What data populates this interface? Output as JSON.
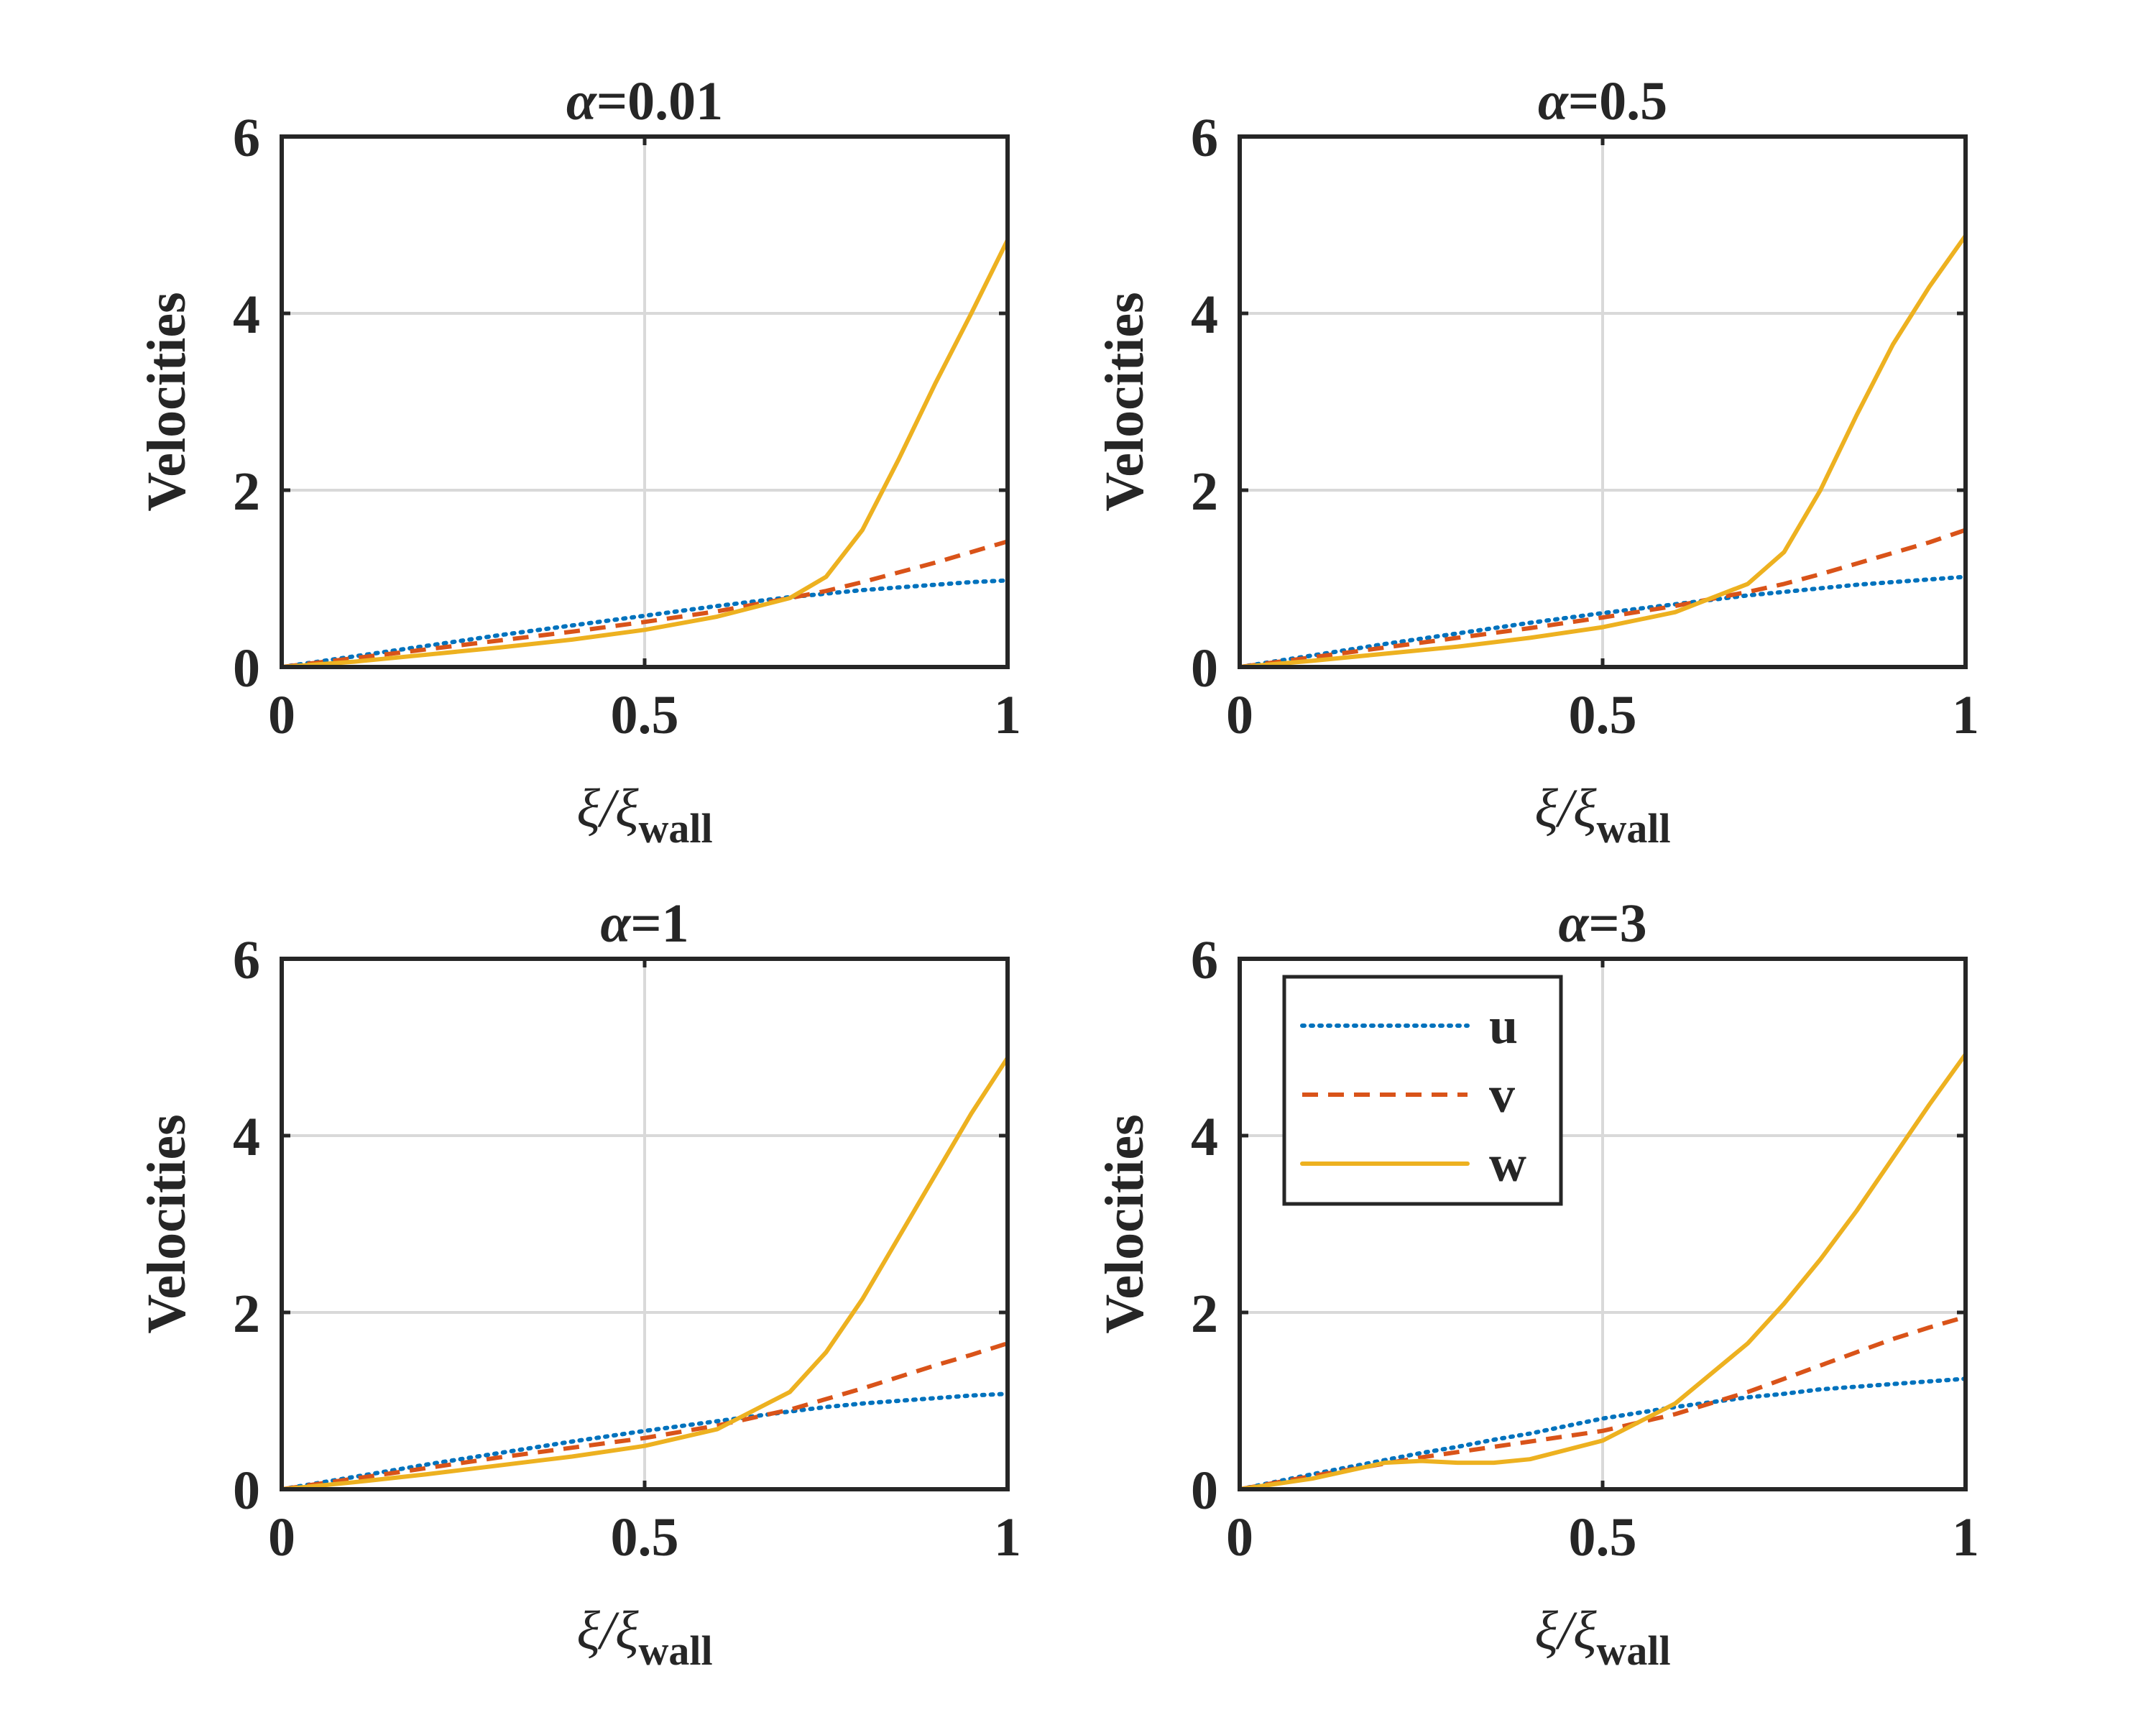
{
  "figure": {
    "legend": [
      {
        "key": "u",
        "label": "u"
      },
      {
        "key": "v",
        "label": "v"
      },
      {
        "key": "w",
        "label": "w"
      }
    ]
  },
  "colors": {
    "u": "#0072BD",
    "v": "#D95319",
    "w": "#EDB120",
    "axis": "#262626",
    "grid": "#d9d9d9"
  },
  "chart_data": [
    {
      "type": "line",
      "title": "α=0.01",
      "alpha": "0.01",
      "xlabel": "ξ/ξ",
      "xlabel_sub": "wall",
      "ylabel": "Velocities",
      "xlim": [
        0,
        1
      ],
      "ylim": [
        0,
        6
      ],
      "xticks": [
        0,
        0.5,
        1
      ],
      "xtick_labels": [
        "0",
        "0.5",
        "1"
      ],
      "yticks": [
        0,
        2,
        4,
        6
      ],
      "ytick_labels": [
        "0",
        "2",
        "4",
        "6"
      ],
      "grid": true,
      "x": [
        0,
        0.1,
        0.2,
        0.3,
        0.4,
        0.5,
        0.6,
        0.7,
        0.75,
        0.8,
        0.85,
        0.9,
        0.95,
        1.0
      ],
      "series": [
        {
          "name": "u",
          "values": [
            0,
            0.12,
            0.24,
            0.36,
            0.47,
            0.58,
            0.69,
            0.79,
            0.83,
            0.87,
            0.9,
            0.93,
            0.96,
            0.98
          ]
        },
        {
          "name": "v",
          "values": [
            0,
            0.1,
            0.2,
            0.3,
            0.4,
            0.51,
            0.63,
            0.78,
            0.86,
            0.96,
            1.07,
            1.18,
            1.3,
            1.42
          ]
        },
        {
          "name": "w",
          "values": [
            0,
            0.06,
            0.14,
            0.22,
            0.31,
            0.42,
            0.57,
            0.78,
            1.02,
            1.55,
            2.35,
            3.2,
            4.0,
            4.83
          ]
        }
      ]
    },
    {
      "type": "line",
      "title": "α=0.5",
      "alpha": "0.5",
      "xlabel": "ξ/ξ",
      "xlabel_sub": "wall",
      "ylabel": "Velocities",
      "xlim": [
        0,
        1
      ],
      "ylim": [
        0,
        6
      ],
      "xticks": [
        0,
        0.5,
        1
      ],
      "xtick_labels": [
        "0",
        "0.5",
        "1"
      ],
      "yticks": [
        0,
        2,
        4,
        6
      ],
      "ytick_labels": [
        "0",
        "2",
        "4",
        "6"
      ],
      "grid": true,
      "x": [
        0,
        0.1,
        0.2,
        0.3,
        0.4,
        0.5,
        0.6,
        0.7,
        0.75,
        0.8,
        0.85,
        0.9,
        0.95,
        1.0
      ],
      "series": [
        {
          "name": "u",
          "values": [
            0,
            0.13,
            0.26,
            0.38,
            0.5,
            0.61,
            0.71,
            0.81,
            0.85,
            0.89,
            0.93,
            0.96,
            0.99,
            1.02
          ]
        },
        {
          "name": "v",
          "values": [
            0,
            0.11,
            0.22,
            0.33,
            0.44,
            0.56,
            0.69,
            0.85,
            0.94,
            1.05,
            1.17,
            1.29,
            1.41,
            1.55
          ]
        },
        {
          "name": "w",
          "values": [
            0,
            0.07,
            0.15,
            0.23,
            0.33,
            0.45,
            0.62,
            0.94,
            1.3,
            2.0,
            2.85,
            3.65,
            4.3,
            4.88
          ]
        }
      ]
    },
    {
      "type": "line",
      "title": "α=1",
      "alpha": "1",
      "xlabel": "ξ/ξ",
      "xlabel_sub": "wall",
      "ylabel": "Velocities",
      "xlim": [
        0,
        1
      ],
      "ylim": [
        0,
        6
      ],
      "xticks": [
        0,
        0.5,
        1
      ],
      "xtick_labels": [
        "0",
        "0.5",
        "1"
      ],
      "yticks": [
        0,
        2,
        4,
        6
      ],
      "ytick_labels": [
        "0",
        "2",
        "4",
        "6"
      ],
      "grid": true,
      "x": [
        0,
        0.1,
        0.2,
        0.3,
        0.4,
        0.5,
        0.6,
        0.7,
        0.75,
        0.8,
        0.85,
        0.9,
        0.95,
        1.0
      ],
      "series": [
        {
          "name": "u",
          "values": [
            0,
            0.14,
            0.28,
            0.41,
            0.54,
            0.66,
            0.77,
            0.88,
            0.93,
            0.97,
            1.0,
            1.03,
            1.06,
            1.08
          ]
        },
        {
          "name": "v",
          "values": [
            0,
            0.12,
            0.24,
            0.36,
            0.47,
            0.58,
            0.72,
            0.9,
            1.02,
            1.14,
            1.27,
            1.4,
            1.52,
            1.65
          ]
        },
        {
          "name": "w",
          "values": [
            0,
            0.08,
            0.17,
            0.27,
            0.37,
            0.49,
            0.68,
            1.1,
            1.55,
            2.15,
            2.85,
            3.55,
            4.25,
            4.88
          ]
        }
      ]
    },
    {
      "type": "line",
      "title": "α=3",
      "alpha": "3",
      "xlabel": "ξ/ξ",
      "xlabel_sub": "wall",
      "ylabel": "Velocities",
      "xlim": [
        0,
        1
      ],
      "ylim": [
        0,
        6
      ],
      "xticks": [
        0,
        0.5,
        1
      ],
      "xtick_labels": [
        "0",
        "0.5",
        "1"
      ],
      "yticks": [
        0,
        2,
        4,
        6
      ],
      "ytick_labels": [
        "0",
        "2",
        "4",
        "6"
      ],
      "grid": true,
      "legend": "top-left",
      "x": [
        0,
        0.1,
        0.2,
        0.25,
        0.3,
        0.35,
        0.4,
        0.5,
        0.6,
        0.7,
        0.75,
        0.8,
        0.85,
        0.9,
        0.95,
        1.0
      ],
      "series": [
        {
          "name": "u",
          "values": [
            0,
            0.17,
            0.33,
            0.41,
            0.48,
            0.56,
            0.63,
            0.8,
            0.93,
            1.04,
            1.08,
            1.13,
            1.16,
            1.19,
            1.22,
            1.25
          ]
        },
        {
          "name": "v",
          "values": [
            0,
            0.15,
            0.29,
            0.36,
            0.42,
            0.48,
            0.54,
            0.66,
            0.85,
            1.1,
            1.25,
            1.4,
            1.55,
            1.7,
            1.83,
            1.95
          ]
        },
        {
          "name": "w",
          "values": [
            0,
            0.12,
            0.3,
            0.32,
            0.3,
            0.3,
            0.34,
            0.55,
            0.97,
            1.65,
            2.1,
            2.6,
            3.15,
            3.75,
            4.35,
            4.92
          ]
        }
      ]
    }
  ]
}
